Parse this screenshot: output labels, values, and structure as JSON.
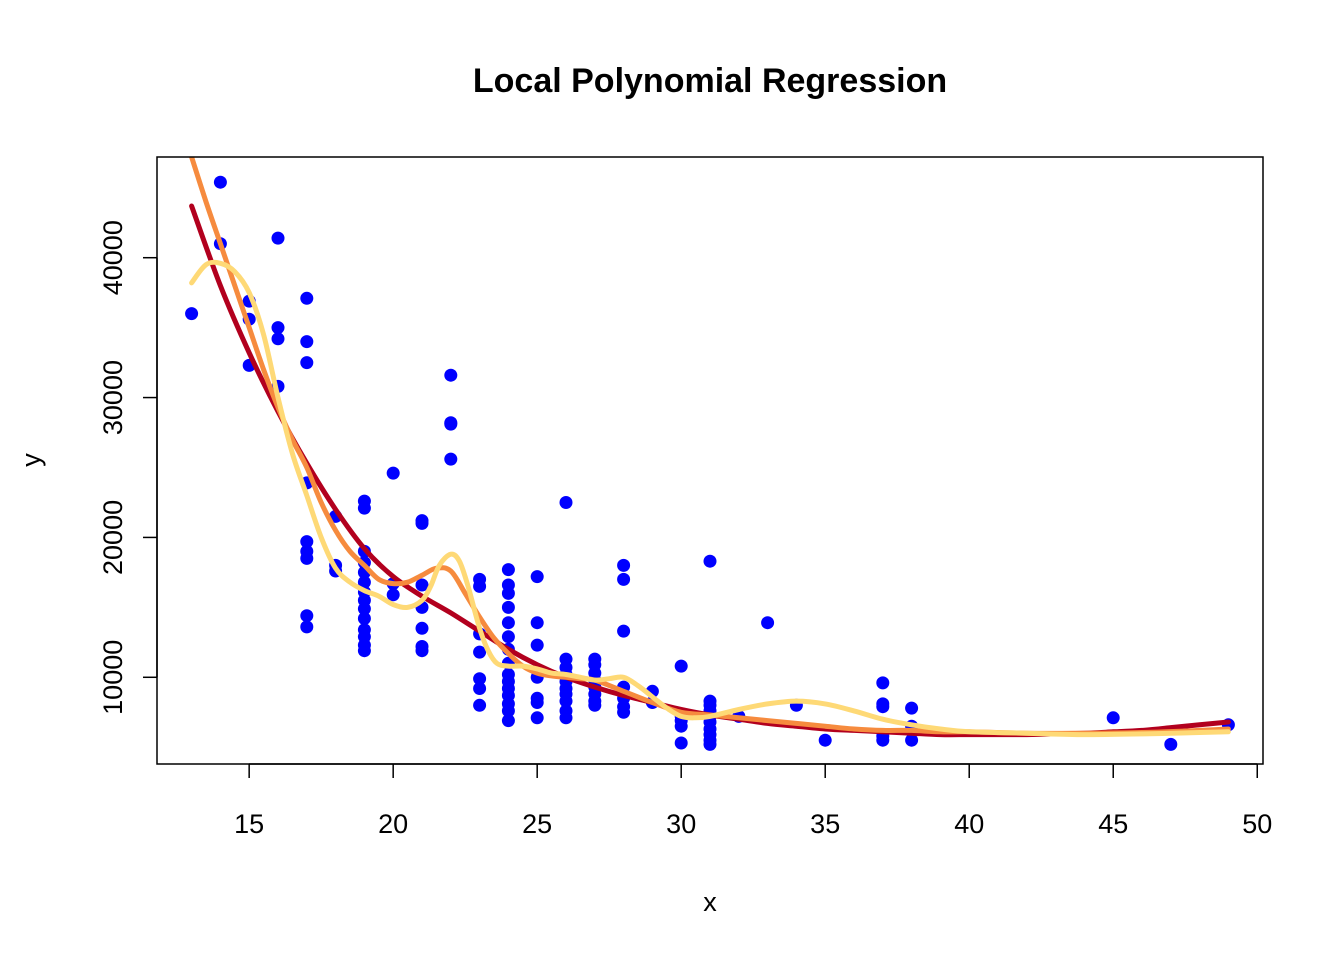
{
  "chart_data": {
    "type": "scatter",
    "title": "Local Polynomial Regression",
    "xlabel": "x",
    "ylabel": "y",
    "xlim": [
      11.8,
      50.2
    ],
    "ylim": [
      3800,
      47200
    ],
    "x_ticks": [
      15,
      20,
      25,
      30,
      35,
      40,
      45,
      50
    ],
    "y_ticks": [
      10000,
      20000,
      30000,
      40000
    ],
    "grid": false,
    "legend": "none",
    "point_color": "#0000FF",
    "points": [
      [
        13,
        36000
      ],
      [
        14,
        45400
      ],
      [
        14,
        41000
      ],
      [
        15,
        36900
      ],
      [
        15,
        35600
      ],
      [
        15,
        32300
      ],
      [
        16,
        41400
      ],
      [
        16,
        35000
      ],
      [
        16,
        34200
      ],
      [
        16,
        30800
      ],
      [
        17,
        37100
      ],
      [
        17,
        34000
      ],
      [
        17,
        32500
      ],
      [
        17,
        23900
      ],
      [
        17,
        19700
      ],
      [
        17,
        19000
      ],
      [
        17,
        18500
      ],
      [
        17,
        14400
      ],
      [
        17,
        13600
      ],
      [
        18,
        21500
      ],
      [
        18,
        18000
      ],
      [
        18,
        17600
      ],
      [
        19,
        22600
      ],
      [
        19,
        22100
      ],
      [
        19,
        19000
      ],
      [
        19,
        18200
      ],
      [
        19,
        17500
      ],
      [
        19,
        16800
      ],
      [
        19,
        16100
      ],
      [
        19,
        15500
      ],
      [
        19,
        14900
      ],
      [
        19,
        14200
      ],
      [
        19,
        13400
      ],
      [
        19,
        12900
      ],
      [
        19,
        12300
      ],
      [
        19,
        11900
      ],
      [
        20,
        24600
      ],
      [
        20,
        16700
      ],
      [
        20,
        15900
      ],
      [
        21,
        21200
      ],
      [
        21,
        21000
      ],
      [
        21,
        16600
      ],
      [
        21,
        15000
      ],
      [
        21,
        13500
      ],
      [
        21,
        12200
      ],
      [
        21,
        11900
      ],
      [
        22,
        31600
      ],
      [
        22,
        28200
      ],
      [
        22,
        28100
      ],
      [
        22,
        25600
      ],
      [
        23,
        17000
      ],
      [
        23,
        16500
      ],
      [
        23,
        13100
      ],
      [
        23,
        11800
      ],
      [
        23,
        9900
      ],
      [
        23,
        9200
      ],
      [
        23,
        8000
      ],
      [
        24,
        17700
      ],
      [
        24,
        16600
      ],
      [
        24,
        16000
      ],
      [
        24,
        15000
      ],
      [
        24,
        13900
      ],
      [
        24,
        12900
      ],
      [
        24,
        12000
      ],
      [
        24,
        11000
      ],
      [
        24,
        10200
      ],
      [
        24,
        9700
      ],
      [
        24,
        9200
      ],
      [
        24,
        8700
      ],
      [
        24,
        8100
      ],
      [
        24,
        7600
      ],
      [
        24,
        6900
      ],
      [
        25,
        17200
      ],
      [
        25,
        13900
      ],
      [
        25,
        12300
      ],
      [
        25,
        10500
      ],
      [
        25,
        10000
      ],
      [
        25,
        8500
      ],
      [
        25,
        8200
      ],
      [
        25,
        7100
      ],
      [
        26,
        22500
      ],
      [
        26,
        11300
      ],
      [
        26,
        10700
      ],
      [
        26,
        10200
      ],
      [
        26,
        9700
      ],
      [
        26,
        9200
      ],
      [
        26,
        8800
      ],
      [
        26,
        8300
      ],
      [
        26,
        7600
      ],
      [
        26,
        7100
      ],
      [
        27,
        11300
      ],
      [
        27,
        10900
      ],
      [
        27,
        10300
      ],
      [
        27,
        9800
      ],
      [
        27,
        9300
      ],
      [
        27,
        8800
      ],
      [
        27,
        8300
      ],
      [
        27,
        8000
      ],
      [
        28,
        18000
      ],
      [
        28,
        17000
      ],
      [
        28,
        13300
      ],
      [
        28,
        9300
      ],
      [
        28,
        8500
      ],
      [
        28,
        7900
      ],
      [
        28,
        7500
      ],
      [
        29,
        9000
      ],
      [
        29,
        8200
      ],
      [
        30,
        10800
      ],
      [
        30,
        7200
      ],
      [
        30,
        6900
      ],
      [
        30,
        6500
      ],
      [
        30,
        5300
      ],
      [
        31,
        18300
      ],
      [
        31,
        8300
      ],
      [
        31,
        8000
      ],
      [
        31,
        7600
      ],
      [
        31,
        7200
      ],
      [
        31,
        6800
      ],
      [
        31,
        6300
      ],
      [
        31,
        5900
      ],
      [
        31,
        5500
      ],
      [
        31,
        5200
      ],
      [
        32,
        7200
      ],
      [
        33,
        13900
      ],
      [
        34,
        8000
      ],
      [
        35,
        5500
      ],
      [
        37,
        9600
      ],
      [
        37,
        8100
      ],
      [
        37,
        7900
      ],
      [
        37,
        5800
      ],
      [
        37,
        5500
      ],
      [
        38,
        7800
      ],
      [
        38,
        6500
      ],
      [
        38,
        5500
      ],
      [
        45,
        7100
      ],
      [
        47,
        5200
      ],
      [
        49,
        6600
      ]
    ],
    "series": [
      {
        "color": "#B2001E",
        "x": [
          13,
          14,
          15,
          16,
          17,
          18,
          19,
          20,
          21,
          22,
          23,
          24,
          25,
          26,
          27,
          28,
          29,
          30,
          31,
          32,
          33,
          34,
          35,
          36,
          37,
          38,
          39,
          40,
          41,
          42,
          43,
          44,
          45,
          46,
          47,
          48,
          49
        ],
        "y": [
          43700,
          38000,
          33200,
          29000,
          25300,
          22000,
          19200,
          17200,
          15800,
          14600,
          13300,
          12000,
          10900,
          10000,
          9300,
          8700,
          8200,
          7700,
          7300,
          7000,
          6700,
          6500,
          6300,
          6200,
          6100,
          6000,
          5900,
          5900,
          5900,
          5900,
          5950,
          6000,
          6100,
          6200,
          6400,
          6600,
          6800
        ]
      },
      {
        "color": "#F68B3E",
        "x": [
          13,
          13.5,
          14,
          14.5,
          15,
          15.5,
          16,
          16.5,
          17,
          17.5,
          18,
          18.5,
          19,
          19.5,
          20,
          20.5,
          21,
          21.5,
          22,
          22.5,
          23,
          23.5,
          24,
          24.5,
          25,
          25.5,
          26,
          26.5,
          27,
          28,
          29,
          30,
          31,
          32,
          33,
          34,
          35,
          36,
          37,
          38,
          39,
          40,
          42,
          44,
          46,
          48,
          49
        ],
        "y": [
          47200,
          44000,
          41000,
          38000,
          35000,
          32000,
          29300,
          27000,
          25000,
          22500,
          20500,
          19000,
          18000,
          17000,
          16700,
          16800,
          17300,
          17800,
          17600,
          16000,
          14300,
          12800,
          11700,
          10800,
          10300,
          10100,
          10000,
          9900,
          9800,
          9000,
          8200,
          7500,
          7300,
          7100,
          6900,
          6700,
          6500,
          6300,
          6200,
          6200,
          6100,
          6100,
          6000,
          6000,
          6050,
          6200,
          6300
        ]
      },
      {
        "color": "#FED976",
        "x": [
          13,
          13.5,
          14,
          14.5,
          15,
          15.5,
          16,
          16.5,
          17,
          17.5,
          18,
          18.5,
          19,
          19.5,
          20,
          20.5,
          21,
          21.3,
          21.6,
          22,
          22.3,
          22.6,
          23,
          23.3,
          23.6,
          24,
          24.5,
          25,
          25.5,
          26,
          26.5,
          27,
          27.5,
          28,
          28.5,
          29,
          29.5,
          30,
          30.5,
          31,
          32,
          33,
          34,
          35,
          36,
          37,
          38,
          39,
          40,
          42,
          44,
          46,
          48,
          49
        ],
        "y": [
          38200,
          39500,
          39600,
          39000,
          37500,
          34500,
          30000,
          26000,
          23000,
          20000,
          17800,
          16800,
          16200,
          15800,
          15200,
          15000,
          15500,
          16500,
          18000,
          18800,
          18300,
          16500,
          13500,
          11900,
          11000,
          10800,
          10800,
          10600,
          10300,
          10200,
          10000,
          9800,
          9900,
          10000,
          9400,
          8600,
          7800,
          7200,
          7100,
          7200,
          7700,
          8100,
          8300,
          8100,
          7600,
          7000,
          6600,
          6300,
          6100,
          6000,
          5900,
          5950,
          6050,
          6100
        ]
      }
    ]
  }
}
